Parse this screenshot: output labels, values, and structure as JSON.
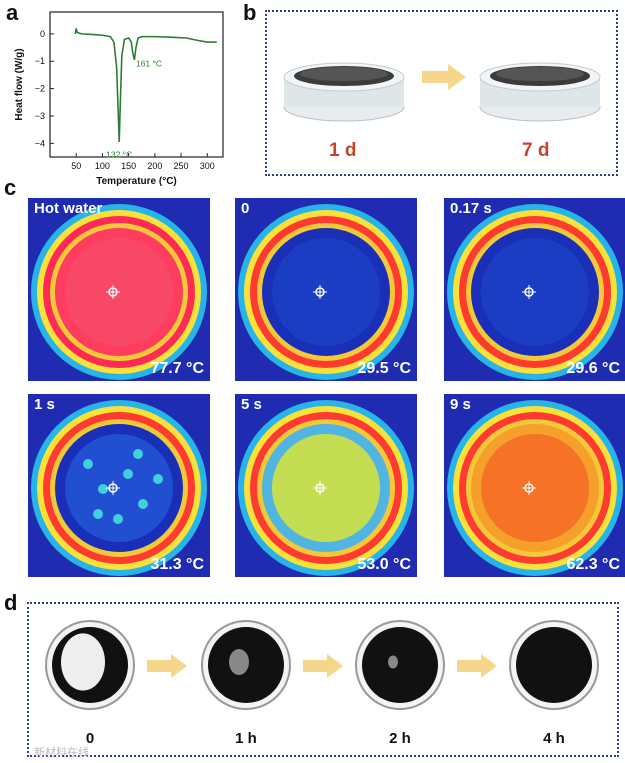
{
  "panels": {
    "a": "a",
    "b": "b",
    "c": "c",
    "d": "d"
  },
  "chart_data": {
    "type": "line",
    "xlabel": "Temperature (°C)",
    "ylabel": "Heat flow (W/g)",
    "xlim": [
      0,
      330
    ],
    "ylim": [
      -4.5,
      0.8
    ],
    "xticks": [
      "50",
      "100",
      "150",
      "200",
      "250",
      "300"
    ],
    "yticks": [
      "0",
      "-1",
      "-2",
      "-3",
      "-4"
    ],
    "annotations": [
      "161 °C",
      "132 °C"
    ],
    "series": [
      {
        "color": "#2e7d32",
        "x": [
          48,
          50,
          52,
          60,
          80,
          100,
          115,
          122,
          127,
          130,
          132,
          134,
          137,
          142,
          150,
          155,
          158,
          161,
          164,
          168,
          175,
          200,
          230,
          260,
          285,
          300,
          318
        ],
        "y": [
          0.0,
          0.2,
          0.05,
          0.0,
          -0.02,
          -0.05,
          -0.1,
          -0.3,
          -1.2,
          -2.8,
          -3.95,
          -2.6,
          -0.8,
          -0.2,
          -0.15,
          -0.3,
          -0.7,
          -0.95,
          -0.5,
          -0.15,
          -0.1,
          -0.1,
          -0.12,
          -0.15,
          -0.25,
          -0.3,
          -0.3
        ]
      }
    ]
  },
  "panel_b": {
    "day_labels": [
      "1 d",
      "7 d"
    ],
    "accent": "#c5452a"
  },
  "panel_c": {
    "images": [
      {
        "time": "Hot water",
        "temp": "77.7 °C",
        "state": "hot"
      },
      {
        "time": "0",
        "temp": "29.5 °C",
        "state": "cold"
      },
      {
        "time": "0.17 s",
        "temp": "29.6 °C",
        "state": "cold"
      },
      {
        "time": "1 s",
        "temp": "31.3 °C",
        "state": "spots"
      },
      {
        "time": "5 s",
        "temp": "53.0 °C",
        "state": "mid"
      },
      {
        "time": "9 s",
        "temp": "62.3 °C",
        "state": "warm"
      }
    ]
  },
  "panel_d": {
    "labels": [
      "0",
      "1 h",
      "2 h",
      "4 h"
    ]
  },
  "watermark": "新材料在线"
}
